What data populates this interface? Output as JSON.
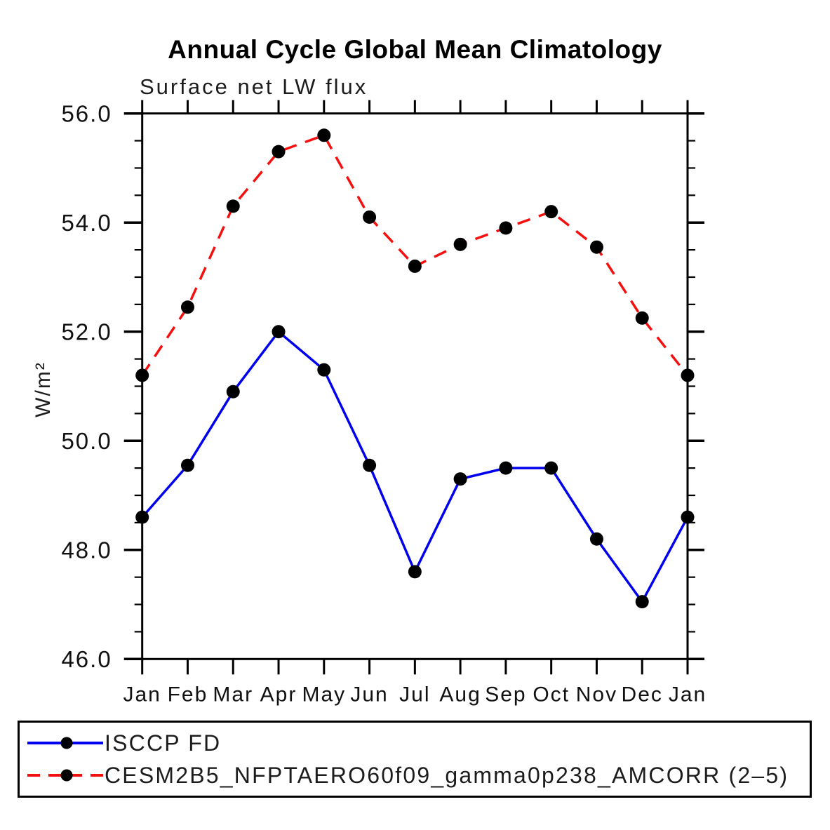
{
  "title": "Annual Cycle Global Mean Climatology",
  "subtitle": "Surface net LW flux",
  "ylabel": "W/m²",
  "chart_data": {
    "type": "line",
    "x_categories": [
      "Jan",
      "Feb",
      "Mar",
      "Apr",
      "May",
      "Jun",
      "Jul",
      "Aug",
      "Sep",
      "Oct",
      "Nov",
      "Dec",
      "Jan"
    ],
    "series": [
      {
        "name": "ISCCP FD",
        "color": "#0000ee",
        "style": "solid",
        "marker": "circle",
        "marker_color": "#000000",
        "values": [
          48.6,
          49.55,
          50.9,
          52.0,
          51.3,
          49.55,
          47.6,
          49.3,
          49.5,
          49.5,
          48.2,
          47.05,
          48.6
        ]
      },
      {
        "name": "CESM2B5_NFPTAERO60f09_gamma0p238_AMCORR (2–5)",
        "color": "#f50f0f",
        "style": "dashed",
        "marker": "circle",
        "marker_color": "#000000",
        "values": [
          51.2,
          52.45,
          54.3,
          55.3,
          55.6,
          54.1,
          53.2,
          53.6,
          53.9,
          54.2,
          53.55,
          52.25,
          51.2
        ]
      }
    ],
    "ylim": [
      46.0,
      56.0
    ],
    "yticks": [
      46.0,
      48.0,
      50.0,
      52.0,
      54.0,
      56.0
    ],
    "ytick_labels": [
      "46.0",
      "48.0",
      "50.0",
      "52.0",
      "54.0",
      "56.0"
    ],
    "minor_tick_step": 0.5,
    "grid": false,
    "legend_position": "bottom-box"
  }
}
